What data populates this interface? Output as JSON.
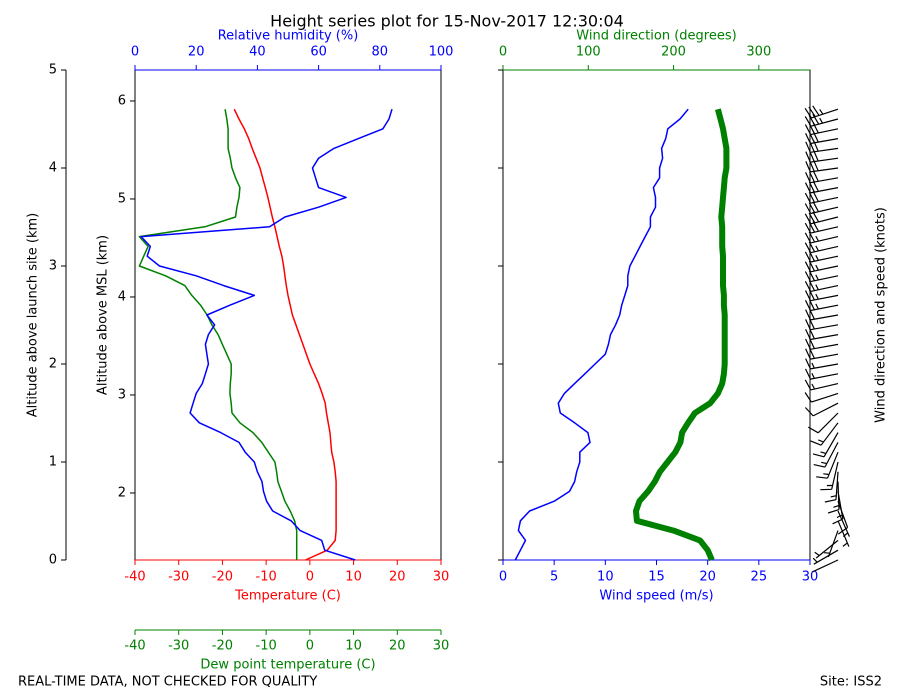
{
  "title": "Height series plot for 15-Nov-2017 12:30:04",
  "footer_left": "REAL-TIME DATA, NOT CHECKED FOR QUALITY",
  "footer_right": "Site: ISS2",
  "chart_data": [
    {
      "type": "line",
      "xlabel": "Temperature (C)",
      "xlim": [
        -40,
        30
      ],
      "xticks": [
        -40,
        -30,
        -20,
        -10,
        0,
        10,
        20,
        30
      ],
      "xcolor": "#ff0000",
      "x2label": "Relative humidity (%)",
      "x2lim": [
        0,
        100
      ],
      "x2ticks": [
        0,
        20,
        40,
        60,
        80,
        100
      ],
      "x2color": "#0000ff",
      "x3label": "Dew point temperature (C)",
      "x3lim": [
        -40,
        30
      ],
      "x3ticks": [
        -40,
        -30,
        -20,
        -10,
        0,
        10,
        20,
        30
      ],
      "x3color": "#008000",
      "ylabel": "Altitude above launch site (km)",
      "ylim": [
        0,
        5
      ],
      "yticks": [
        0,
        1,
        2,
        3,
        4,
        5
      ],
      "y2label": "Altitude above MSL (km)",
      "y2lim": [
        1.316,
        6.316
      ],
      "y2ticks": [
        2,
        3,
        4,
        5,
        6
      ],
      "altitude": [
        0,
        0.1,
        0.2,
        0.3,
        0.4,
        0.5,
        0.6,
        0.7,
        0.8,
        0.9,
        1.0,
        1.1,
        1.2,
        1.3,
        1.4,
        1.5,
        1.6,
        1.7,
        1.8,
        1.9,
        2.0,
        2.1,
        2.2,
        2.3,
        2.4,
        2.5,
        2.6,
        2.7,
        2.8,
        2.9,
        3.0,
        3.1,
        3.2,
        3.3,
        3.4,
        3.5,
        3.6,
        3.7,
        3.8,
        3.9,
        4.0,
        4.1,
        4.2,
        4.3,
        4.4,
        4.5,
        4.6
      ],
      "series": [
        {
          "color": "#ff0000",
          "axis": "x",
          "linewidth": 1.5,
          "values": [
            -1,
            4,
            5.8,
            6,
            6,
            6,
            6,
            6,
            6,
            5.8,
            5.5,
            5,
            4.8,
            4.6,
            4.2,
            3.8,
            3.5,
            2.8,
            2,
            1,
            0,
            -0.8,
            -1.6,
            -2.4,
            -3.2,
            -4,
            -4.5,
            -5,
            -5.4,
            -5.7,
            -6,
            -6.4,
            -7,
            -7.5,
            -8,
            -8.6,
            -9.1,
            -9.6,
            -10.2,
            -10.8,
            -11.4,
            -12.3,
            -13.2,
            -14,
            -15,
            -16.2,
            -17.3
          ]
        },
        {
          "color": "#008000",
          "axis": "x3",
          "linewidth": 1.5,
          "values": [
            -3,
            -3,
            -3,
            -3,
            -3.5,
            -4.5,
            -5.7,
            -6.5,
            -7.3,
            -7.6,
            -8,
            -9.5,
            -11,
            -13,
            -16,
            -17.8,
            -18,
            -18.3,
            -18.2,
            -18,
            -18,
            -19,
            -20,
            -21,
            -22.4,
            -23.5,
            -25,
            -27,
            -28.6,
            -33,
            -39,
            -38,
            -37,
            -39,
            -24,
            -17,
            -16.7,
            -16.2,
            -16,
            -17,
            -17.8,
            -18.2,
            -18.7,
            -18.7,
            -18.7,
            -19,
            -19.4
          ]
        },
        {
          "color": "#0000ff",
          "axis": "x2",
          "linewidth": 1.5,
          "values": [
            72,
            62,
            61,
            54,
            51,
            45,
            43,
            42,
            41.5,
            40,
            39,
            36,
            34,
            28,
            21,
            18,
            19,
            20,
            22,
            23,
            24,
            23.5,
            23,
            24,
            26,
            23.5,
            31,
            39,
            29,
            20,
            8,
            4,
            5,
            2,
            44,
            49,
            60,
            69,
            60,
            59,
            58,
            60,
            65,
            73,
            81,
            83,
            84
          ]
        }
      ]
    },
    {
      "type": "line",
      "xlabel": "Wind speed (m/s)",
      "xlim": [
        0,
        30
      ],
      "xticks": [
        0,
        5,
        10,
        15,
        20,
        25,
        30
      ],
      "xcolor": "#0000ff",
      "x2label": "Wind direction (degrees)",
      "x2lim": [
        0,
        360
      ],
      "x2ticks": [
        0,
        100,
        200,
        300
      ],
      "x2color": "#008000",
      "ylim": [
        0,
        5
      ],
      "yticks": [
        0,
        1,
        2,
        3,
        4,
        5
      ],
      "barb_label": "Wind direction and speed (knots)",
      "altitude": [
        0,
        0.1,
        0.2,
        0.3,
        0.4,
        0.5,
        0.6,
        0.7,
        0.8,
        0.9,
        1.0,
        1.1,
        1.2,
        1.3,
        1.4,
        1.5,
        1.6,
        1.7,
        1.8,
        1.9,
        2.0,
        2.1,
        2.2,
        2.3,
        2.4,
        2.5,
        2.6,
        2.7,
        2.8,
        2.9,
        3.0,
        3.1,
        3.2,
        3.3,
        3.4,
        3.5,
        3.6,
        3.7,
        3.8,
        3.9,
        4.0,
        4.1,
        4.2,
        4.3,
        4.4,
        4.5,
        4.6
      ],
      "series": [
        {
          "color": "#0000ff",
          "axis": "x",
          "linewidth": 1.5,
          "values": [
            1.2,
            1.7,
            2.2,
            1.5,
            1.7,
            2.6,
            5,
            6.5,
            7,
            7.2,
            7.5,
            7.5,
            8.5,
            8.3,
            7,
            5.6,
            5.4,
            6,
            7,
            8,
            9,
            10,
            10.3,
            10.5,
            11,
            11.4,
            11.6,
            11.9,
            12.2,
            12.2,
            12.4,
            12.9,
            13.4,
            13.9,
            14.4,
            14.4,
            14.9,
            14.9,
            14.7,
            15.3,
            15.3,
            15.6,
            15.5,
            15.9,
            16.1,
            17.3,
            18.1
          ]
        },
        {
          "color": "#008000",
          "axis": "x2",
          "linewidth": 6,
          "values": [
            245,
            240,
            231,
            200,
            157,
            156,
            160,
            170,
            178,
            184,
            193,
            202,
            208,
            210,
            217,
            225,
            243,
            252,
            257,
            259,
            260,
            260,
            260,
            260,
            260,
            260,
            259,
            259,
            258,
            258,
            258,
            258,
            257,
            257,
            257,
            256,
            257,
            258,
            259,
            260,
            262,
            262,
            262,
            260,
            258,
            255,
            252
          ]
        }
      ]
    }
  ]
}
